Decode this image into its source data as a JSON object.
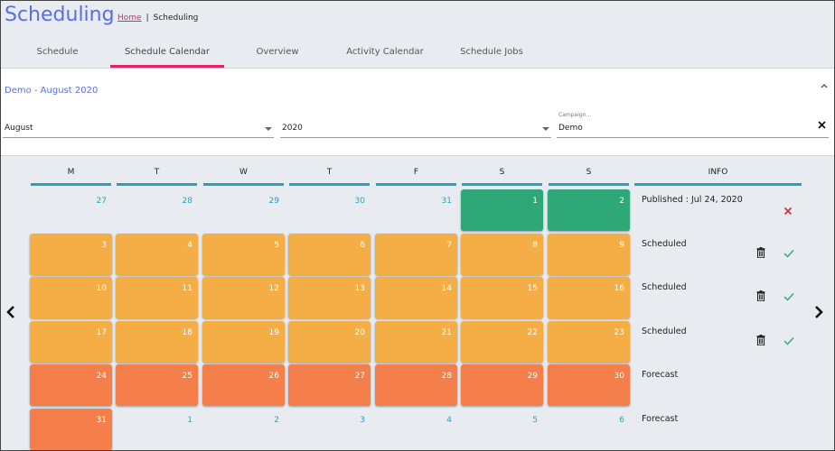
{
  "app": {
    "title": "Scheduling"
  },
  "breadcrumb": {
    "home": "Home",
    "separator": "|",
    "current": "Scheduling"
  },
  "tabs": [
    {
      "label": "Schedule",
      "active": false
    },
    {
      "label": "Schedule Calendar",
      "active": true
    },
    {
      "label": "Overview",
      "active": false
    },
    {
      "label": "Activity Calendar",
      "active": false
    },
    {
      "label": "Schedule Jobs",
      "active": false
    }
  ],
  "panel": {
    "title": "Demo - August 2020",
    "collapse_icon": "chevron-up-icon",
    "month_select": {
      "value": "August"
    },
    "year_select": {
      "value": "2020"
    },
    "campaign": {
      "label": "Campaign...",
      "value": "Demo",
      "clear_icon": "close-icon"
    }
  },
  "calendar": {
    "headers": [
      "M",
      "T",
      "W",
      "T",
      "F",
      "S",
      "S"
    ],
    "info_header": "INFO",
    "colors": {
      "green": "#2fa878",
      "orange": "#f5ae46",
      "red": "#f47f4a",
      "accent": "#2a9fc0"
    },
    "weeks": [
      {
        "days": [
          {
            "n": "27",
            "s": "plain"
          },
          {
            "n": "28",
            "s": "plain"
          },
          {
            "n": "29",
            "s": "plain"
          },
          {
            "n": "30",
            "s": "plain"
          },
          {
            "n": "31",
            "s": "plain"
          },
          {
            "n": "1",
            "s": "green"
          },
          {
            "n": "2",
            "s": "green"
          }
        ],
        "info": "Published : Jul 24, 2020",
        "actions": [
          "close-icon"
        ]
      },
      {
        "days": [
          {
            "n": "3",
            "s": "orange"
          },
          {
            "n": "4",
            "s": "orange"
          },
          {
            "n": "5",
            "s": "orange"
          },
          {
            "n": "6",
            "s": "orange"
          },
          {
            "n": "7",
            "s": "orange"
          },
          {
            "n": "8",
            "s": "orange"
          },
          {
            "n": "9",
            "s": "orange"
          }
        ],
        "info": "Scheduled",
        "actions": [
          "trash-icon",
          "check-icon"
        ]
      },
      {
        "days": [
          {
            "n": "10",
            "s": "orange"
          },
          {
            "n": "11",
            "s": "orange"
          },
          {
            "n": "12",
            "s": "orange"
          },
          {
            "n": "13",
            "s": "orange"
          },
          {
            "n": "14",
            "s": "orange"
          },
          {
            "n": "15",
            "s": "orange"
          },
          {
            "n": "16",
            "s": "orange"
          }
        ],
        "info": "Scheduled",
        "actions": [
          "trash-icon",
          "check-icon"
        ]
      },
      {
        "days": [
          {
            "n": "17",
            "s": "orange"
          },
          {
            "n": "18",
            "s": "orange"
          },
          {
            "n": "19",
            "s": "orange"
          },
          {
            "n": "20",
            "s": "orange"
          },
          {
            "n": "21",
            "s": "orange"
          },
          {
            "n": "22",
            "s": "orange"
          },
          {
            "n": "23",
            "s": "orange"
          }
        ],
        "info": "Scheduled",
        "actions": [
          "trash-icon",
          "check-icon"
        ]
      },
      {
        "days": [
          {
            "n": "24",
            "s": "red"
          },
          {
            "n": "25",
            "s": "red"
          },
          {
            "n": "26",
            "s": "red"
          },
          {
            "n": "27",
            "s": "red"
          },
          {
            "n": "28",
            "s": "red"
          },
          {
            "n": "29",
            "s": "red"
          },
          {
            "n": "30",
            "s": "red"
          }
        ],
        "info": "Forecast",
        "actions": []
      },
      {
        "days": [
          {
            "n": "31",
            "s": "red"
          },
          {
            "n": "1",
            "s": "plain"
          },
          {
            "n": "2",
            "s": "plain"
          },
          {
            "n": "3",
            "s": "plain"
          },
          {
            "n": "4",
            "s": "plain"
          },
          {
            "n": "5",
            "s": "plain"
          },
          {
            "n": "6",
            "s": "plain"
          }
        ],
        "info": "Forecast",
        "actions": []
      }
    ],
    "prev_icon": "chevron-left-icon",
    "next_icon": "chevron-right-icon"
  }
}
